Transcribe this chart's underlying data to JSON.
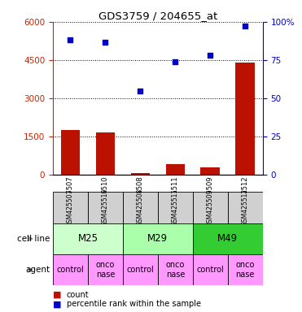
{
  "title": "GDS3759 / 204655_at",
  "samples": [
    "GSM425507",
    "GSM425510",
    "GSM425508",
    "GSM425511",
    "GSM425509",
    "GSM425512"
  ],
  "counts": [
    1750,
    1650,
    80,
    400,
    300,
    4400
  ],
  "percentiles": [
    88.0,
    86.5,
    55.0,
    74.0,
    78.0,
    97.5
  ],
  "ylim_left": [
    0,
    6000
  ],
  "ylim_right": [
    0,
    100
  ],
  "yticks_left": [
    0,
    1500,
    3000,
    4500,
    6000
  ],
  "ytick_labels_left": [
    "0",
    "1500",
    "3000",
    "4500",
    "6000"
  ],
  "yticks_right": [
    0,
    25,
    50,
    75,
    100
  ],
  "ytick_labels_right": [
    "0",
    "25",
    "50",
    "75",
    "100%"
  ],
  "bar_color": "#bb1100",
  "dot_color": "#0000cc",
  "cell_lines": [
    {
      "label": "M25",
      "span": [
        0,
        2
      ],
      "color": "#ccffcc"
    },
    {
      "label": "M29",
      "span": [
        2,
        4
      ],
      "color": "#aaffaa"
    },
    {
      "label": "M49",
      "span": [
        4,
        6
      ],
      "color": "#33cc33"
    }
  ],
  "agents": [
    {
      "label": "control",
      "col": 0,
      "color": "#ff99ff"
    },
    {
      "label": "onconase",
      "col": 1,
      "color": "#ff99ff"
    },
    {
      "label": "control",
      "col": 2,
      "color": "#ff99ff"
    },
    {
      "label": "onconase",
      "col": 3,
      "color": "#ff99ff"
    },
    {
      "label": "control",
      "col": 4,
      "color": "#ff99ff"
    },
    {
      "label": "onconase",
      "col": 5,
      "color": "#ff99ff"
    }
  ],
  "tick_label_color_left": "#cc2200",
  "tick_label_color_right": "#0000cc"
}
